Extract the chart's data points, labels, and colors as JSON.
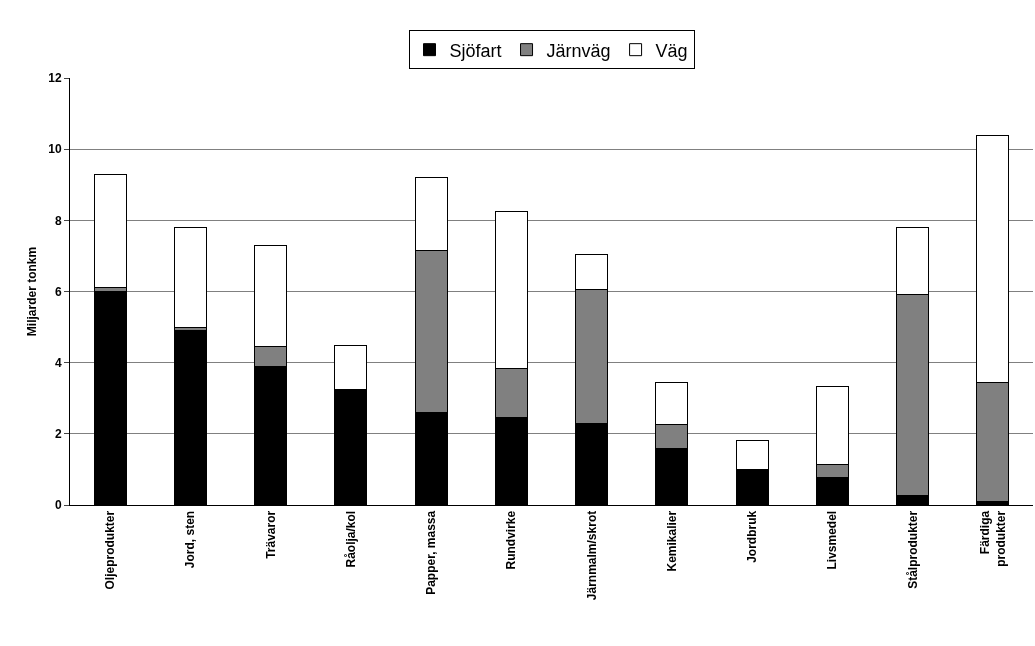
{
  "chart_data": {
    "type": "bar",
    "stacked": true,
    "ylabel": "Miljarder tonkm",
    "categories": [
      "Oljeprodukter",
      "Jord, sten",
      "Trävaror",
      "Råolja/kol",
      "Papper, massa",
      "Rundvirke",
      "Järnmalm/skrot",
      "Kemikalier",
      "Jordbruk",
      "Livsmedel",
      "Stålprodukter",
      "Färdiga produkter"
    ],
    "series": [
      {
        "name": "Sjöfart",
        "color": "#000000",
        "values": [
          6.0,
          4.9,
          3.9,
          3.25,
          2.6,
          2.45,
          2.3,
          1.6,
          0.97,
          0.76,
          0.28,
          0.1
        ]
      },
      {
        "name": "Järnväg",
        "color": "#808080",
        "values": [
          0.12,
          0.1,
          0.55,
          0,
          4.55,
          1.4,
          3.75,
          0.65,
          0.03,
          0.38,
          5.63,
          3.35
        ]
      },
      {
        "name": "Väg",
        "color": "#ffffff",
        "values": [
          3.17,
          2.8,
          2.85,
          1.23,
          2.05,
          4.4,
          1.0,
          1.2,
          0.8,
          2.2,
          1.89,
          6.93
        ]
      }
    ],
    "ylim": [
      0,
      12
    ],
    "yticks": [
      0,
      2,
      4,
      6,
      8,
      10,
      12
    ],
    "grid": "y",
    "legend": "top"
  }
}
